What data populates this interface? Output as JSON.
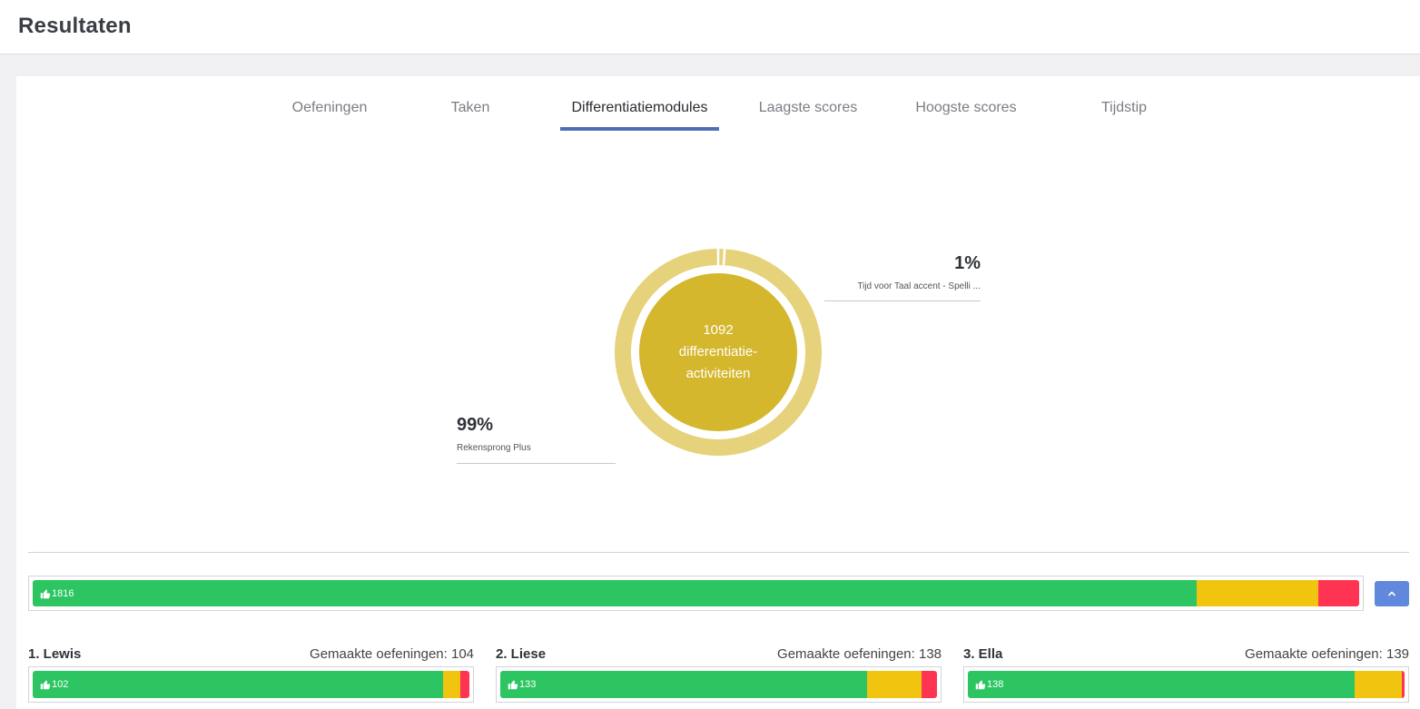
{
  "header": {
    "title": "Resultaten"
  },
  "tabs": [
    {
      "label": "Oefeningen"
    },
    {
      "label": "Taken"
    },
    {
      "label": "Differentiatiemodules"
    },
    {
      "label": "Laagste scores"
    },
    {
      "label": "Hoogste scores"
    },
    {
      "label": "Tijdstip"
    }
  ],
  "active_tab": "Differentiatiemodules",
  "chart_data": {
    "type": "pie",
    "variant": "donut",
    "center_text": [
      "1092",
      "differentiatie-",
      "activiteiten"
    ],
    "slices": [
      {
        "label": "Rekensprong Plus",
        "percent_label": "99%",
        "value": 99,
        "color": "#e6d27a"
      },
      {
        "label": "Tijd voor Taal accent - Spelli ...",
        "percent_label": "1%",
        "value": 1,
        "color": "#e6d27a"
      }
    ],
    "center_color": "#d4b72c"
  },
  "overall_bar": {
    "count": "1816",
    "green": 0.889,
    "yellow": 0.093,
    "red": 0.031,
    "colors": {
      "green": "#2dc562",
      "yellow": "#f1c40f",
      "red": "#ff3352"
    }
  },
  "collapse_icon": "chevron-up-icon",
  "students": [
    {
      "name": "1. Lewis",
      "made": "Gemaakte oefeningen: 104",
      "count": "102",
      "green": 0.95,
      "yellow": 0.04,
      "red": 0.02
    },
    {
      "name": "2. Liese",
      "made": "Gemaakte oefeningen: 138",
      "count": "133",
      "green": 0.84,
      "yellow": 0.125,
      "red": 0.036
    },
    {
      "name": "3. Ella",
      "made": "Gemaakte oefeningen: 139",
      "count": "138",
      "green": 0.895,
      "yellow": 0.108,
      "red": 0.007
    }
  ]
}
